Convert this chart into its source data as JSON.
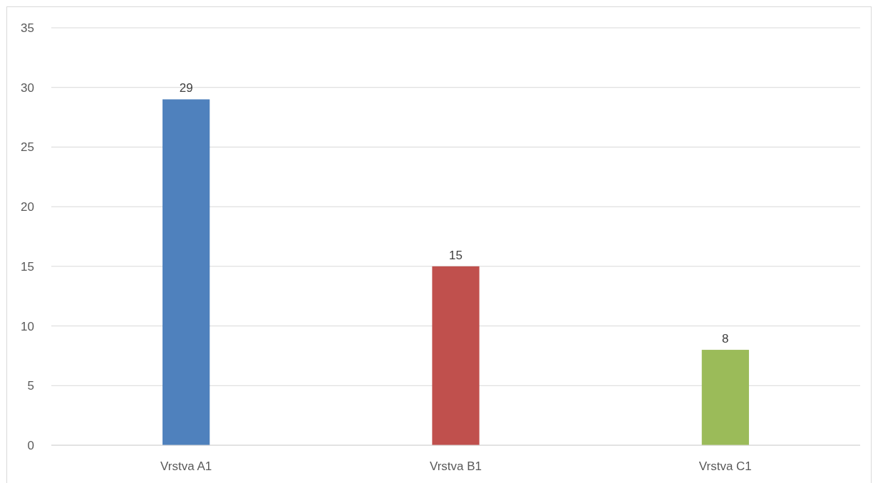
{
  "chart_data": {
    "type": "bar",
    "categories": [
      "Vrstva A1",
      "Vrstva B1",
      "Vrstva C1"
    ],
    "values": [
      29,
      15,
      8
    ],
    "colors": [
      "#4f81bd",
      "#c0504d",
      "#9bbb59"
    ],
    "ylim": [
      0,
      35
    ],
    "yticks": [
      0,
      5,
      10,
      15,
      20,
      25,
      30,
      35
    ],
    "grid": "y",
    "data_labels": true
  }
}
